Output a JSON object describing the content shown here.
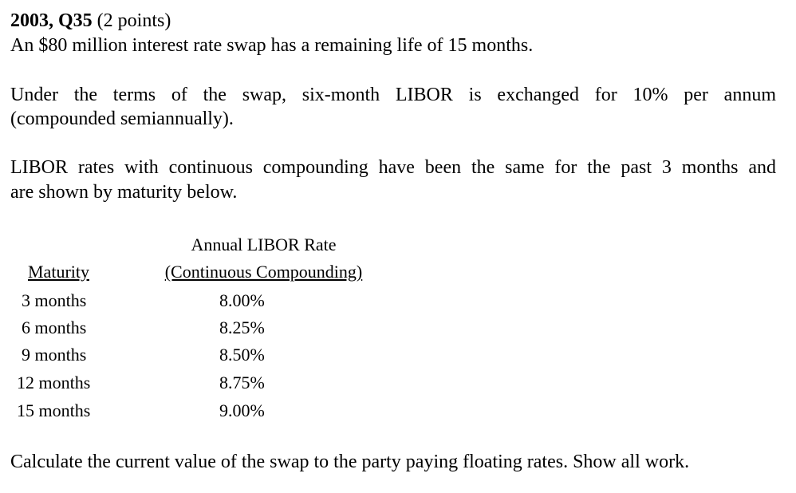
{
  "question": {
    "label": "2003, Q35",
    "points": "(2 points)",
    "intro": "An $80 million interest rate swap has a remaining life of 15 months.",
    "terms_line1": "Under the terms of the swap, six-month LIBOR is exchanged for 10% per annum",
    "terms_line2": "(compounded semiannually).",
    "libor_line1": "LIBOR rates with continuous compounding have been the same for the past 3 months and",
    "libor_line2": "are shown by maturity below.",
    "task": "Calculate the current value of the swap to the party paying floating rates. Show all work."
  },
  "table": {
    "header_rate_line1": "Annual LIBOR Rate",
    "header_maturity": "Maturity",
    "header_rate_line2": "(Continuous Compounding)",
    "rows": [
      {
        "maturity": "3 months",
        "rate": "8.00%"
      },
      {
        "maturity": "6 months",
        "rate": "8.25%"
      },
      {
        "maturity": "9 months",
        "rate": "8.50%"
      },
      {
        "maturity": "12 months",
        "rate": "8.75%"
      },
      {
        "maturity": "15 months",
        "rate": "9.00%"
      }
    ]
  }
}
